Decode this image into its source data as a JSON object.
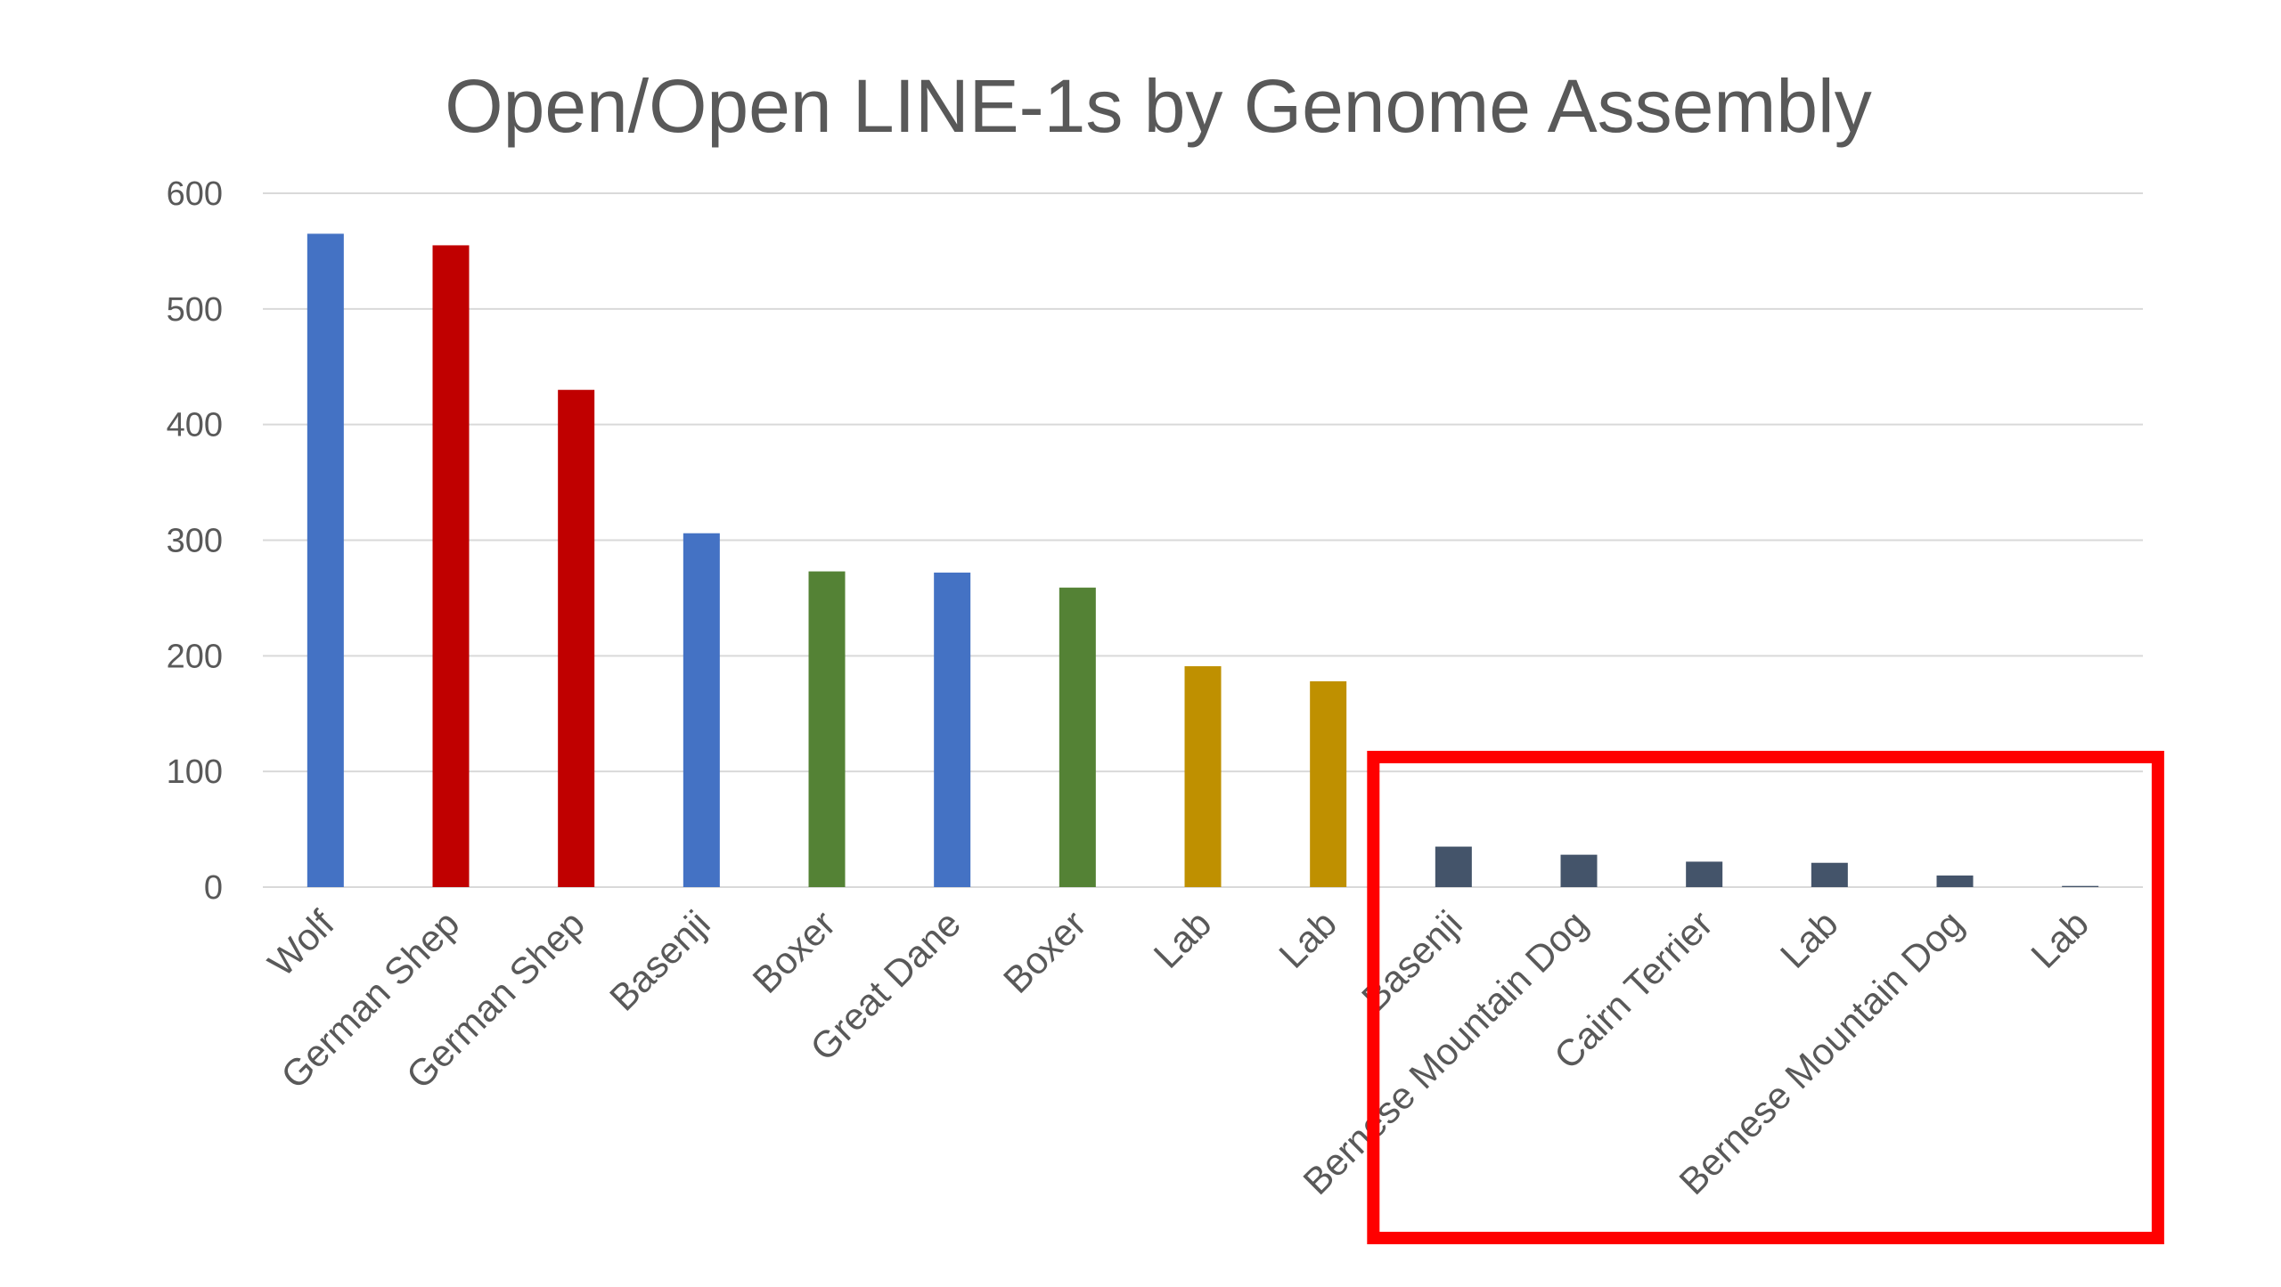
{
  "chart_data": {
    "type": "bar",
    "title": "Open/Open LINE-1s by Genome Assembly",
    "xlabel": "",
    "ylabel": "",
    "ylim": [
      0,
      600
    ],
    "yticks": [
      "0",
      "100",
      "200",
      "300",
      "400",
      "500",
      "600"
    ],
    "grid": true,
    "legend": "none",
    "categories": [
      "Wolf",
      "German Shep",
      "German Shep",
      "Basenji",
      "Boxer",
      "Great Dane",
      "Boxer",
      "Lab",
      "Lab",
      "Basenji",
      "Bernese Mountain Dog",
      "Cairn Terrier",
      "Lab",
      "Bernese Mountain Dog",
      "Lab"
    ],
    "values": [
      565,
      555,
      430,
      306,
      273,
      272,
      259,
      191,
      178,
      35,
      28,
      22,
      21,
      10,
      1
    ],
    "bar_colors": [
      "#4472c4",
      "#c00000",
      "#c00000",
      "#4472c4",
      "#548235",
      "#4472c4",
      "#548235",
      "#bf9000",
      "#bf9000",
      "#44546a",
      "#44546a",
      "#44546a",
      "#44546a",
      "#44546a",
      "#44546a"
    ],
    "highlight": {
      "color": "#ff0000",
      "first_index": 9,
      "last_index": 14
    }
  }
}
